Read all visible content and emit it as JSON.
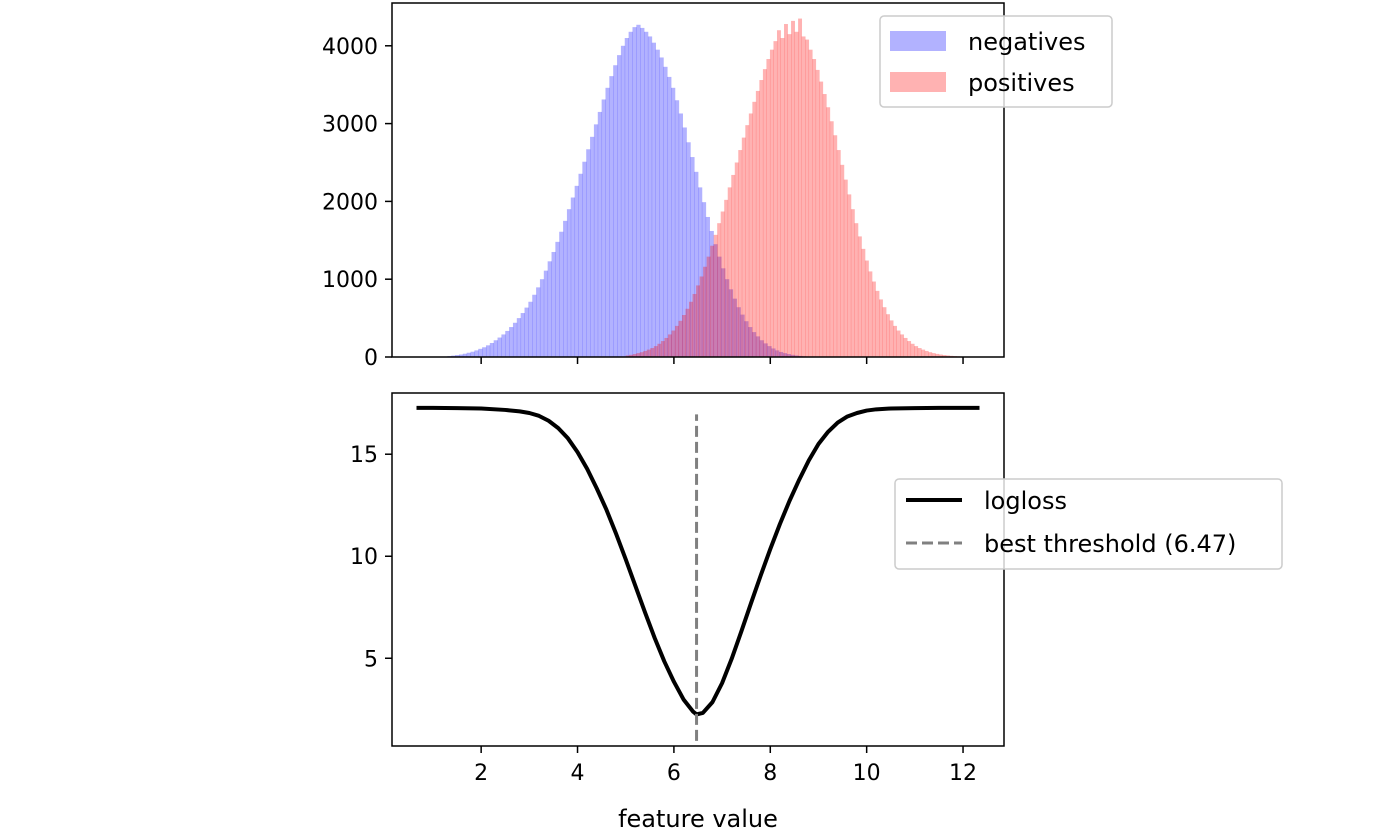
{
  "chart_data": [
    {
      "type": "histogram",
      "xlabel": "",
      "ylabel": "",
      "xlim": [
        0.15,
        12.85
      ],
      "ylim": [
        0,
        4550
      ],
      "x_ticks": [
        2,
        4,
        6,
        8,
        10,
        12
      ],
      "x_tick_labels_shown": false,
      "y_ticks": [
        0,
        1000,
        2000,
        3000,
        4000
      ],
      "y_tick_labels": [
        "0",
        "1000",
        "2000",
        "3000",
        "4000"
      ],
      "grid": false,
      "legend": {
        "placement": "top-right"
      },
      "series": [
        {
          "name": "negatives",
          "color": "#0000ff",
          "alpha": 0.3,
          "bin_range": [
            1.3,
            9.3
          ],
          "values": [
            12,
            18,
            25,
            32,
            42,
            55,
            68,
            85,
            105,
            125,
            150,
            180,
            215,
            250,
            290,
            335,
            385,
            440,
            500,
            565,
            635,
            710,
            800,
            895,
            1000,
            1110,
            1230,
            1350,
            1480,
            1610,
            1750,
            1900,
            2050,
            2200,
            2355,
            2510,
            2670,
            2830,
            2990,
            3150,
            3310,
            3460,
            3610,
            3750,
            3880,
            4000,
            4100,
            4180,
            4240,
            4270,
            4230,
            4180,
            4120,
            4040,
            3950,
            3850,
            3730,
            3600,
            3460,
            3300,
            3130,
            2950,
            2760,
            2570,
            2380,
            2180,
            1990,
            1800,
            1620,
            1450,
            1290,
            1140,
            1000,
            870,
            750,
            640,
            545,
            460,
            385,
            320,
            265,
            215,
            175,
            140,
            110,
            85,
            65,
            50,
            38,
            28,
            20,
            14,
            9,
            6,
            4,
            3,
            2,
            1,
            1,
            0
          ]
        },
        {
          "name": "positives",
          "color": "#ff0000",
          "alpha": 0.3,
          "bin_range": [
            5.0,
            12.3
          ],
          "values": [
            20,
            28,
            38,
            50,
            62,
            78,
            95,
            115,
            140,
            170,
            205,
            245,
            290,
            340,
            400,
            465,
            540,
            620,
            710,
            810,
            920,
            1035,
            1160,
            1290,
            1430,
            1570,
            1720,
            1870,
            2020,
            2180,
            2340,
            2500,
            2660,
            2820,
            2980,
            3130,
            3280,
            3420,
            3560,
            3700,
            3830,
            3950,
            4060,
            4200,
            4100,
            4280,
            4150,
            4320,
            4180,
            4350,
            4120,
            4080,
            3950,
            3830,
            3690,
            3540,
            3380,
            3210,
            3030,
            2850,
            2660,
            2470,
            2280,
            2090,
            1900,
            1720,
            1550,
            1390,
            1240,
            1100,
            970,
            850,
            740,
            640,
            550,
            470,
            400,
            340,
            290,
            245,
            205,
            170,
            140,
            115,
            95,
            78,
            62,
            50,
            40,
            32,
            25,
            20,
            15,
            12,
            9,
            7,
            5,
            4,
            3,
            2
          ]
        }
      ]
    },
    {
      "type": "line",
      "xlabel": "feature value",
      "ylabel": "",
      "xlim": [
        0.15,
        12.85
      ],
      "ylim": [
        0.7,
        18.0
      ],
      "x_ticks": [
        2,
        4,
        6,
        8,
        10,
        12
      ],
      "x_tick_labels": [
        "2",
        "4",
        "6",
        "8",
        "10",
        "12"
      ],
      "y_ticks": [
        5,
        10,
        15
      ],
      "y_tick_labels": [
        "5",
        "10",
        "15"
      ],
      "grid": false,
      "legend": {
        "placement": "center-right"
      },
      "series": [
        {
          "name": "logloss",
          "color": "#000000",
          "x": [
            0.7,
            1.0,
            1.5,
            2.0,
            2.5,
            2.8,
            3.0,
            3.2,
            3.4,
            3.6,
            3.8,
            4.0,
            4.2,
            4.4,
            4.6,
            4.8,
            5.0,
            5.2,
            5.4,
            5.6,
            5.8,
            6.0,
            6.2,
            6.4,
            6.47,
            6.6,
            6.8,
            7.0,
            7.2,
            7.4,
            7.6,
            7.8,
            8.0,
            8.2,
            8.4,
            8.6,
            8.8,
            9.0,
            9.2,
            9.4,
            9.6,
            9.8,
            10.0,
            10.2,
            10.5,
            11.0,
            11.5,
            12.3
          ],
          "y": [
            17.27,
            17.27,
            17.26,
            17.24,
            17.17,
            17.1,
            17.02,
            16.88,
            16.64,
            16.28,
            15.78,
            15.1,
            14.28,
            13.32,
            12.28,
            11.1,
            9.85,
            8.55,
            7.25,
            6.0,
            4.85,
            3.85,
            2.98,
            2.38,
            2.25,
            2.32,
            2.85,
            3.78,
            4.98,
            6.32,
            7.7,
            9.05,
            10.35,
            11.58,
            12.72,
            13.75,
            14.7,
            15.5,
            16.1,
            16.55,
            16.85,
            17.02,
            17.14,
            17.2,
            17.24,
            17.26,
            17.27,
            17.27
          ]
        },
        {
          "name": "best threshold (6.47)",
          "color": "#808080",
          "style": "dashed",
          "x": [
            6.47,
            6.47
          ],
          "y": [
            0.95,
            16.95
          ]
        }
      ]
    }
  ]
}
